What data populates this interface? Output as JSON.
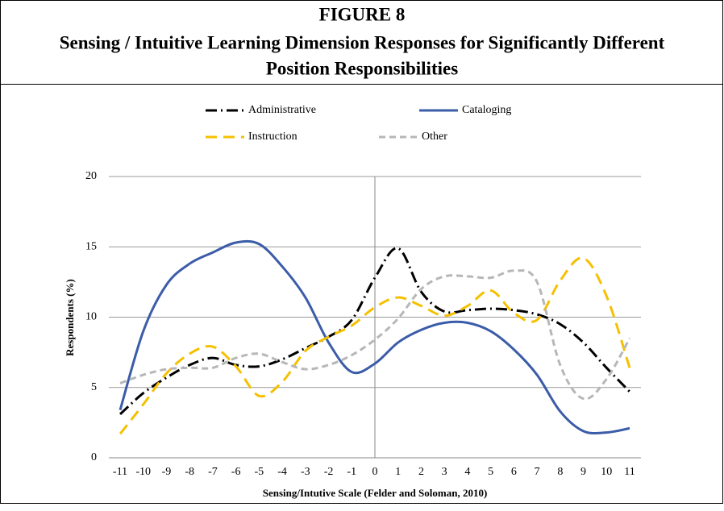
{
  "chart_data": {
    "type": "line",
    "figure_label": "FIGURE 8",
    "title": [
      "Sensing / Intuitive Learning Dimension Responses for Significantly Different",
      "Position Responsibilities"
    ],
    "x_label": "Sensing/Intutive Scale (Felder and Soloman, 2010)",
    "y_label": "Respondents (%)",
    "x": [
      -11,
      -10,
      -9,
      -8,
      -7,
      -6,
      -5,
      -4,
      -3,
      -2,
      -1,
      0,
      1,
      2,
      3,
      4,
      5,
      6,
      7,
      8,
      9,
      10,
      11
    ],
    "xlim": [
      -11,
      11
    ],
    "xticks": [
      -11,
      -10,
      -9,
      -8,
      -7,
      -6,
      -5,
      -4,
      -3,
      -2,
      -1,
      0,
      1,
      2,
      3,
      4,
      5,
      6,
      7,
      8,
      9,
      10,
      11
    ],
    "ylim": [
      0,
      20
    ],
    "yticks": [
      0,
      5,
      10,
      15,
      20
    ],
    "grid": true,
    "smooth": true,
    "legend": "top",
    "series": [
      {
        "name": "Administrative",
        "color": "#000000",
        "dash": "14 5 2 5",
        "values": [
          3.1,
          4.6,
          5.7,
          6.6,
          7.1,
          6.6,
          6.5,
          7.0,
          7.8,
          8.6,
          9.8,
          12.8,
          14.9,
          11.8,
          10.4,
          10.5,
          10.6,
          10.5,
          10.2,
          9.5,
          8.2,
          6.4,
          4.7
        ]
      },
      {
        "name": "Cataloging",
        "color": "#3b5ca8",
        "dash": "",
        "values": [
          3.4,
          9.0,
          12.3,
          13.8,
          14.6,
          15.3,
          15.2,
          13.6,
          11.4,
          8.2,
          6.1,
          6.7,
          8.2,
          9.1,
          9.6,
          9.6,
          9.0,
          7.7,
          5.9,
          3.3,
          1.9,
          1.8,
          2.1
        ]
      },
      {
        "name": "Instruction",
        "color": "#f5c000",
        "dash": "14 8",
        "values": [
          1.7,
          3.8,
          6.0,
          7.4,
          7.9,
          6.5,
          4.4,
          5.4,
          7.6,
          8.6,
          9.4,
          10.7,
          11.4,
          10.8,
          10.1,
          10.8,
          11.9,
          10.3,
          9.8,
          12.6,
          14.2,
          11.5,
          6.4
        ]
      },
      {
        "name": "Other",
        "color": "#b7b7b7",
        "dash": "8 5",
        "values": [
          5.3,
          5.9,
          6.3,
          6.4,
          6.4,
          7.1,
          7.4,
          6.8,
          6.3,
          6.6,
          7.3,
          8.4,
          9.9,
          12.0,
          12.9,
          12.9,
          12.8,
          13.3,
          12.5,
          6.6,
          4.2,
          5.6,
          8.5
        ]
      }
    ]
  }
}
